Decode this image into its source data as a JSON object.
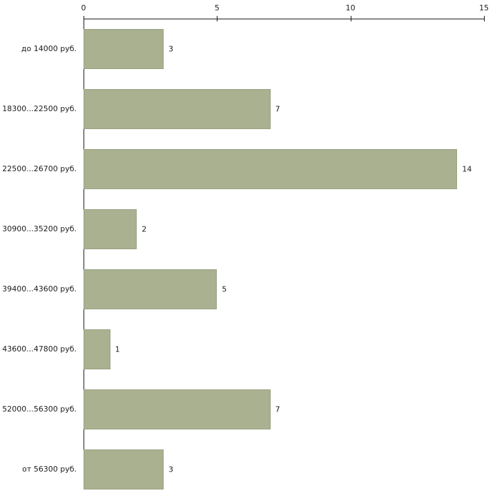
{
  "chart_data": {
    "type": "bar",
    "orientation": "horizontal",
    "title": "",
    "xlabel": "",
    "ylabel": "",
    "categories": [
      "до 14000 руб.",
      "18300...22500 руб.",
      "22500...26700 руб.",
      "30900...35200 руб.",
      "39400...43600 руб.",
      "43600...47800 руб.",
      "52000...56300 руб.",
      "от 56300 руб."
    ],
    "values": [
      3,
      7,
      14,
      2,
      5,
      1,
      7,
      3
    ],
    "xlim": [
      0,
      15
    ],
    "xticks": [
      0,
      5,
      10,
      15
    ],
    "grid": false,
    "legend": false,
    "colors": {
      "bar_fill": "#a9b190",
      "bar_border": "#99a283",
      "axis": "#1a1a1a",
      "text": "#1a1a1a",
      "background": "#ffffff"
    }
  }
}
